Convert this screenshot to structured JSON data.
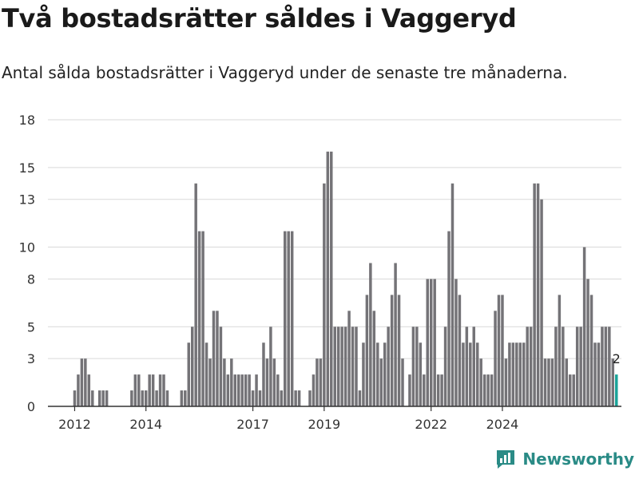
{
  "title": "Två bostadsrätter såldes i Vaggeryd",
  "subtitle": "Antal sålda bostadsrätter i Vaggeryd under de senaste tre månaderna.",
  "brand": {
    "name": "Newsworthy"
  },
  "colors": {
    "bar": "#747377",
    "highlight": "#1aa399",
    "grid": "#d9d9d9",
    "axis": "#333333",
    "brand": "#2a8b86"
  },
  "chart_data": {
    "type": "bar",
    "ylim": [
      0,
      18
    ],
    "y_ticks": [
      0,
      3,
      5,
      8,
      10,
      13,
      15,
      18
    ],
    "grid": true,
    "x_tick_labels": [
      "2012",
      "2014",
      "2017",
      "2019",
      "2022",
      "2024"
    ],
    "x_tick_index": [
      7,
      27,
      57,
      77,
      107,
      127
    ],
    "highlight_label": "2",
    "values": [
      0,
      0,
      0,
      0,
      0,
      0,
      0,
      1,
      2,
      3,
      3,
      2,
      1,
      0,
      1,
      1,
      1,
      0,
      0,
      0,
      0,
      0,
      0,
      1,
      2,
      2,
      1,
      1,
      2,
      2,
      1,
      2,
      2,
      1,
      0,
      0,
      0,
      1,
      1,
      4,
      5,
      14,
      11,
      11,
      4,
      3,
      6,
      6,
      5,
      3,
      2,
      3,
      2,
      2,
      2,
      2,
      2,
      1,
      2,
      1,
      4,
      3,
      5,
      3,
      2,
      1,
      11,
      11,
      11,
      1,
      1,
      0,
      0,
      1,
      2,
      3,
      3,
      14,
      16,
      16,
      5,
      5,
      5,
      5,
      6,
      5,
      5,
      1,
      4,
      7,
      9,
      6,
      4,
      3,
      4,
      5,
      7,
      9,
      7,
      3,
      0,
      2,
      5,
      5,
      4,
      2,
      8,
      8,
      8,
      2,
      2,
      5,
      11,
      14,
      8,
      7,
      4,
      5,
      4,
      5,
      4,
      3,
      2,
      2,
      2,
      6,
      7,
      7,
      3,
      4,
      4,
      4,
      4,
      4,
      5,
      5,
      14,
      14,
      13,
      3,
      3,
      3,
      5,
      7,
      5,
      3,
      2,
      2,
      5,
      5,
      10,
      8,
      7,
      4,
      4,
      5,
      5,
      5,
      3,
      2
    ]
  }
}
